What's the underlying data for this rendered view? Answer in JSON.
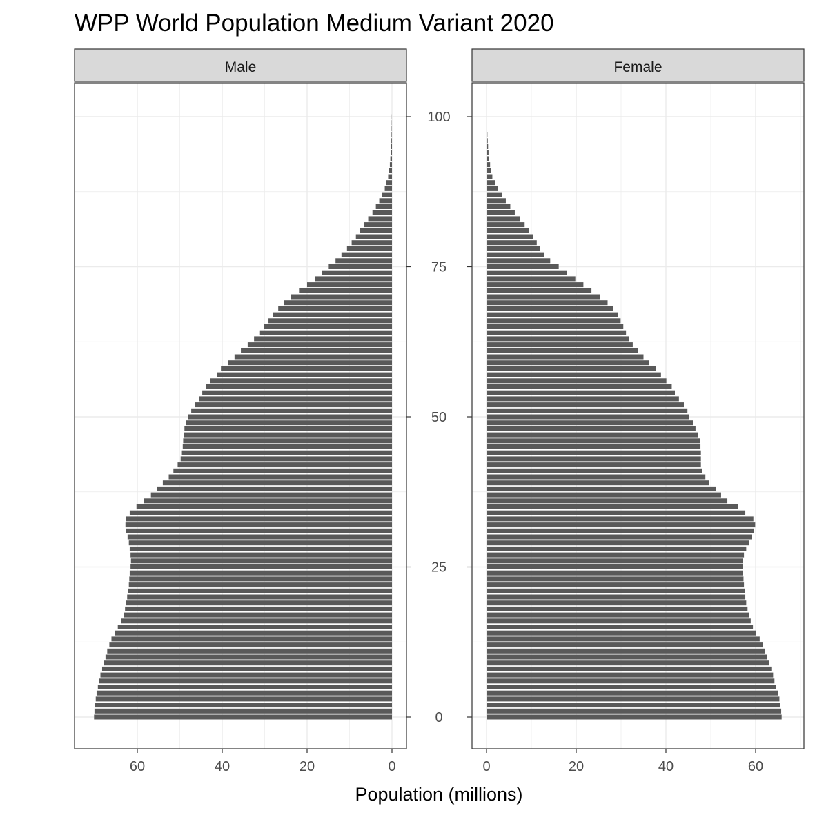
{
  "chart_data": {
    "type": "bar",
    "orientation": "horizontal",
    "title": "WPP World Population Medium Variant 2020",
    "xlabel": "Population (millions)",
    "ylabel": "",
    "y_ticks": [
      "0",
      "25",
      "50",
      "75",
      "100"
    ],
    "ages": [
      0,
      1,
      2,
      3,
      4,
      5,
      6,
      7,
      8,
      9,
      10,
      11,
      12,
      13,
      14,
      15,
      16,
      17,
      18,
      19,
      20,
      21,
      22,
      23,
      24,
      25,
      26,
      27,
      28,
      29,
      30,
      31,
      32,
      33,
      34,
      35,
      36,
      37,
      38,
      39,
      40,
      41,
      42,
      43,
      44,
      45,
      46,
      47,
      48,
      49,
      50,
      51,
      52,
      53,
      54,
      55,
      56,
      57,
      58,
      59,
      60,
      61,
      62,
      63,
      64,
      65,
      66,
      67,
      68,
      69,
      70,
      71,
      72,
      73,
      74,
      75,
      76,
      77,
      78,
      79,
      80,
      81,
      82,
      83,
      84,
      85,
      86,
      87,
      88,
      89,
      90,
      91,
      92,
      93,
      94,
      95,
      96,
      97,
      98,
      99,
      100
    ],
    "panels": [
      {
        "name": "Male",
        "x_direction": "reversed",
        "xlim": [
          0,
          74.5
        ],
        "x_ticks": [
          "60",
          "40",
          "20",
          "0"
        ],
        "x_tick_values": [
          60,
          40,
          20,
          0
        ],
        "values": [
          70.2,
          70.1,
          70.0,
          69.8,
          69.6,
          69.3,
          69.0,
          68.7,
          68.3,
          67.9,
          67.5,
          67.1,
          66.6,
          66.1,
          65.3,
          64.6,
          63.9,
          63.2,
          62.9,
          62.6,
          62.4,
          62.2,
          62.0,
          61.9,
          61.8,
          61.6,
          61.5,
          61.6,
          61.8,
          62.0,
          62.3,
          62.6,
          62.8,
          62.7,
          61.8,
          60.2,
          58.5,
          56.8,
          55.3,
          54.0,
          52.6,
          51.5,
          50.5,
          49.8,
          49.5,
          49.3,
          49.2,
          49.0,
          48.9,
          48.6,
          48.1,
          47.3,
          46.4,
          45.5,
          44.7,
          43.9,
          42.8,
          41.3,
          40.3,
          38.7,
          37.1,
          35.6,
          34.0,
          32.5,
          31.1,
          30.1,
          29.1,
          28.0,
          26.8,
          25.5,
          23.8,
          21.9,
          20.0,
          18.2,
          16.5,
          14.9,
          13.3,
          11.9,
          10.6,
          9.5,
          8.5,
          7.5,
          6.6,
          5.6,
          4.6,
          3.8,
          3.0,
          2.3,
          1.7,
          1.3,
          0.9,
          0.65,
          0.5,
          0.38,
          0.28,
          0.2,
          0.14,
          0.1,
          0.07,
          0.05,
          0.03
        ]
      },
      {
        "name": "Female",
        "x_direction": "normal",
        "xlim": [
          0,
          70.5
        ],
        "x_ticks": [
          "0",
          "20",
          "40",
          "60"
        ],
        "x_tick_values": [
          0,
          20,
          40,
          60
        ],
        "values": [
          65.8,
          65.7,
          65.5,
          65.3,
          65.0,
          64.6,
          64.2,
          63.9,
          63.5,
          63.0,
          62.6,
          62.1,
          61.6,
          60.9,
          60.0,
          59.4,
          58.9,
          58.5,
          58.2,
          57.9,
          57.7,
          57.6,
          57.4,
          57.3,
          57.2,
          57.1,
          57.1,
          57.4,
          57.9,
          58.5,
          59.1,
          59.6,
          59.9,
          59.5,
          57.7,
          56.1,
          53.7,
          52.3,
          51.2,
          49.6,
          48.8,
          48.0,
          47.8,
          47.8,
          47.8,
          47.7,
          47.6,
          47.2,
          46.6,
          46.0,
          45.2,
          44.8,
          44.0,
          42.9,
          42.0,
          41.3,
          40.1,
          38.9,
          37.7,
          36.3,
          35.0,
          33.7,
          32.6,
          31.8,
          31.1,
          30.5,
          29.9,
          29.3,
          28.3,
          27.0,
          25.3,
          23.4,
          21.6,
          19.8,
          18.0,
          16.1,
          14.2,
          12.8,
          11.9,
          11.2,
          10.4,
          9.5,
          8.5,
          7.4,
          6.3,
          5.3,
          4.3,
          3.4,
          2.6,
          1.9,
          1.3,
          1.0,
          0.8,
          0.6,
          0.45,
          0.35,
          0.27,
          0.2,
          0.14,
          0.08,
          0.05
        ]
      }
    ],
    "bar_color": "#595959",
    "strip_fill": "#d9d9d9",
    "grid": true,
    "theme": "bw"
  }
}
